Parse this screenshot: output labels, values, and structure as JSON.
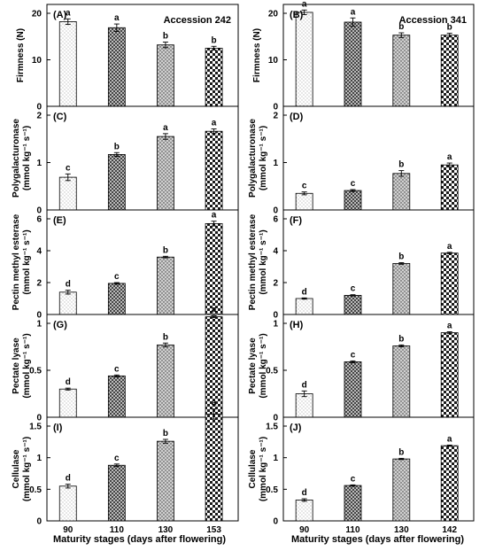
{
  "figure": {
    "xlabel_left": "Maturity stages (days after flowering)",
    "xlabel_right": "Maturity stages (days after flowering)"
  },
  "chart_data": [
    {
      "id": "A",
      "type": "bar",
      "panel_label": "(A)",
      "accession": "Accession 242",
      "ylabel": "Firmness (N)",
      "categories": [
        "90",
        "110",
        "130",
        "153"
      ],
      "values": [
        18.2,
        16.9,
        13.2,
        12.5
      ],
      "errors": [
        0.6,
        0.8,
        0.6,
        0.4
      ],
      "letters": [
        "a",
        "a",
        "b",
        "b"
      ],
      "ylim": [
        0,
        20
      ],
      "yticks": [
        0,
        10,
        20
      ],
      "tick_labels": [
        "0",
        "10",
        "20"
      ]
    },
    {
      "id": "B",
      "type": "bar",
      "panel_label": "(B)",
      "accession": "Accession 341",
      "ylabel": "Firmness (N)",
      "categories": [
        "90",
        "110",
        "130",
        "142"
      ],
      "values": [
        20.2,
        18.1,
        15.3,
        15.3
      ],
      "errors": [
        0.5,
        0.9,
        0.5,
        0.4
      ],
      "letters": [
        "a",
        "a",
        "b",
        "b"
      ],
      "ylim": [
        0,
        20
      ],
      "yticks": [
        0,
        10,
        20
      ],
      "tick_labels": [
        "0",
        "10",
        "20"
      ]
    },
    {
      "id": "C",
      "type": "bar",
      "panel_label": "(C)",
      "ylabel": "Polygalacturonase",
      "yunit": "(mmol kg⁻¹ s⁻¹)",
      "categories": [
        "90",
        "110",
        "130",
        "153"
      ],
      "values": [
        0.69,
        1.17,
        1.55,
        1.66
      ],
      "errors": [
        0.07,
        0.04,
        0.06,
        0.05
      ],
      "letters": [
        "c",
        "b",
        "a",
        "a"
      ],
      "ylim": [
        0,
        2
      ],
      "yticks": [
        0,
        1,
        2
      ],
      "tick_labels": [
        "0",
        "1",
        "2"
      ]
    },
    {
      "id": "D",
      "type": "bar",
      "panel_label": "(D)",
      "ylabel": "Polygalacturonase",
      "yunit": "(mmol kg⁻¹ s⁻¹)",
      "categories": [
        "90",
        "110",
        "130",
        "142"
      ],
      "values": [
        0.35,
        0.41,
        0.77,
        0.95
      ],
      "errors": [
        0.03,
        0.02,
        0.06,
        0.04
      ],
      "letters": [
        "c",
        "c",
        "b",
        "a"
      ],
      "ylim": [
        0,
        2
      ],
      "yticks": [
        0,
        1,
        2
      ],
      "tick_labels": [
        "0",
        "1",
        "2"
      ]
    },
    {
      "id": "E",
      "type": "bar",
      "panel_label": "(E)",
      "ylabel": "Pectin methyl esterase",
      "yunit": "(mmol kg⁻¹ s⁻¹)",
      "categories": [
        "90",
        "110",
        "130",
        "153"
      ],
      "values": [
        1.4,
        1.95,
        3.6,
        5.7
      ],
      "errors": [
        0.12,
        0.05,
        0.05,
        0.15
      ],
      "letters": [
        "d",
        "c",
        "b",
        "a"
      ],
      "ylim": [
        0,
        6
      ],
      "yticks": [
        0,
        2,
        4,
        6
      ],
      "tick_labels": [
        "0",
        "2",
        "4",
        "6"
      ]
    },
    {
      "id": "F",
      "type": "bar",
      "panel_label": "(F)",
      "ylabel": "Pectin methyl esterase",
      "yunit": "(mmol kg⁻¹ s⁻¹)",
      "categories": [
        "90",
        "110",
        "130",
        "142"
      ],
      "values": [
        1.0,
        1.2,
        3.2,
        3.85
      ],
      "errors": [
        0.04,
        0.04,
        0.05,
        0.05
      ],
      "letters": [
        "d",
        "c",
        "b",
        "a"
      ],
      "ylim": [
        0,
        6
      ],
      "yticks": [
        0,
        2,
        4,
        6
      ],
      "tick_labels": [
        "0",
        "2",
        "4",
        "6"
      ]
    },
    {
      "id": "G",
      "type": "bar",
      "panel_label": "(G)",
      "ylabel": "Pectate lyase",
      "yunit": "(mmol kg⁻¹ s⁻¹)",
      "categories": [
        "90",
        "110",
        "130",
        "153"
      ],
      "values": [
        0.3,
        0.44,
        0.77,
        1.07
      ],
      "errors": [
        0.01,
        0.01,
        0.02,
        0.01
      ],
      "letters": [
        "d",
        "c",
        "b",
        "a"
      ],
      "ylim": [
        0,
        1
      ],
      "yticks": [
        0,
        0.5,
        1
      ],
      "tick_labels": [
        "0",
        "0.5",
        "1"
      ]
    },
    {
      "id": "H",
      "type": "bar",
      "panel_label": "(H)",
      "ylabel": "Pectate lyase",
      "yunit": "(mmol kg⁻¹ s⁻¹)",
      "categories": [
        "90",
        "110",
        "130",
        "142"
      ],
      "values": [
        0.25,
        0.59,
        0.76,
        0.9
      ],
      "errors": [
        0.03,
        0.01,
        0.01,
        0.01
      ],
      "letters": [
        "d",
        "c",
        "b",
        "a"
      ],
      "ylim": [
        0,
        1
      ],
      "yticks": [
        0,
        0.5,
        1
      ],
      "tick_labels": [
        "0",
        "0.5",
        "1"
      ]
    },
    {
      "id": "I",
      "type": "bar",
      "panel_label": "(I)",
      "ylabel": "Cellulase",
      "yunit": "(mmol kg⁻¹ s⁻¹)",
      "categories": [
        "90",
        "110",
        "130",
        "153"
      ],
      "values": [
        0.55,
        0.88,
        1.26,
        1.69
      ],
      "errors": [
        0.03,
        0.02,
        0.03,
        0.08
      ],
      "letters": [
        "d",
        "c",
        "b",
        "a"
      ],
      "ylim": [
        0,
        1.5
      ],
      "yticks": [
        0,
        0.5,
        1,
        1.5
      ],
      "tick_labels": [
        "0",
        "0.5",
        "1",
        "1.5"
      ]
    },
    {
      "id": "J",
      "type": "bar",
      "panel_label": "(J)",
      "ylabel": "Cellulase",
      "yunit": "(mmol kg⁻¹ s⁻¹)",
      "categories": [
        "90",
        "110",
        "130",
        "142"
      ],
      "values": [
        0.33,
        0.56,
        0.98,
        1.19
      ],
      "errors": [
        0.02,
        0.01,
        0.01,
        0.01
      ],
      "letters": [
        "d",
        "c",
        "b",
        "a"
      ],
      "ylim": [
        0,
        1.5
      ],
      "yticks": [
        0,
        0.5,
        1,
        1.5
      ],
      "tick_labels": [
        "0",
        "0.5",
        "1",
        "1.5"
      ]
    }
  ]
}
